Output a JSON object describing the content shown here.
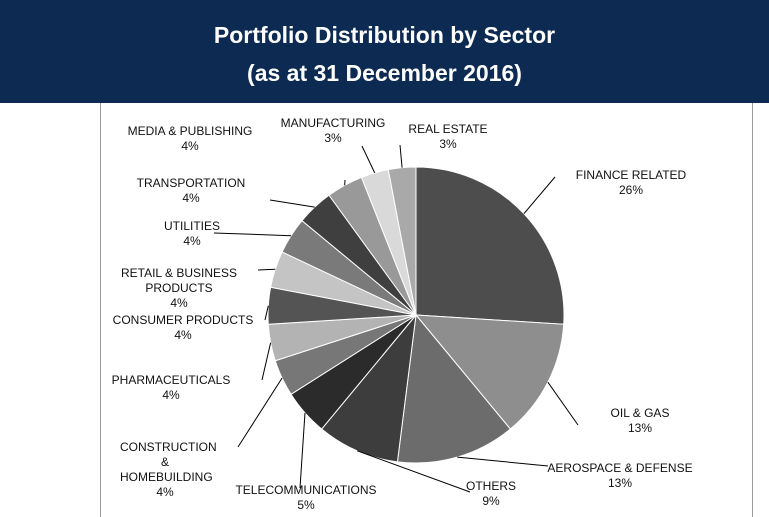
{
  "chart_data": {
    "type": "pie",
    "title": "Portfolio Distribution by Sector",
    "subtitle": "(as at 31 December 2016)",
    "categories": [
      "FINANCE RELATED",
      "OIL & GAS",
      "AEROSPACE & DEFENSE",
      "OTHERS",
      "TELECOMMUNICATIONS",
      "CONSTRUCTION & HOMEBUILDING",
      "PHARMACEUTICALS",
      "CONSUMER PRODUCTS",
      "RETAIL & BUSINESS PRODUCTS",
      "UTILITIES",
      "TRANSPORTATION",
      "MEDIA & PUBLISHING",
      "MANUFACTURING",
      "REAL ESTATE"
    ],
    "values": [
      26,
      13,
      13,
      9,
      5,
      4,
      4,
      4,
      4,
      4,
      4,
      4,
      3,
      3
    ],
    "value_labels": [
      "26%",
      "13%",
      "13%",
      "9%",
      "5%",
      "4%",
      "4%",
      "4%",
      "4%",
      "4%",
      "4%",
      "4%",
      "3%",
      "3%"
    ],
    "colors": [
      "#4d4d4d",
      "#8e8e8e",
      "#6c6c6c",
      "#3d3d3d",
      "#2b2b2b",
      "#777777",
      "#b3b3b3",
      "#545454",
      "#c4c4c4",
      "#7a7a7a",
      "#3f3f3f",
      "#999999",
      "#d9d9d9",
      "#a9a9a9",
      "#e2e2e2"
    ]
  }
}
